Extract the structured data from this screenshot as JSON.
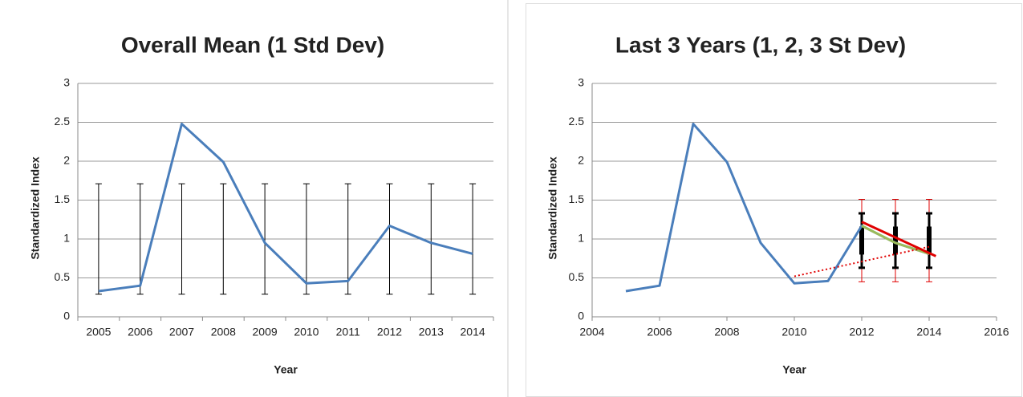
{
  "chart_data": [
    {
      "type": "line",
      "title": "Overall Mean (1 Std Dev)",
      "x_label": "Year",
      "y_label": "Standardized Index",
      "categories": [
        "2005",
        "2006",
        "2007",
        "2008",
        "2009",
        "2010",
        "2011",
        "2012",
        "2013",
        "2014"
      ],
      "series": [
        {
          "color": "#4a7ebb",
          "values": [
            0.33,
            0.4,
            2.48,
            1.99,
            0.95,
            0.43,
            0.46,
            1.17,
            0.95,
            0.81
          ]
        }
      ],
      "error_bars": [
        {
          "color": "#000000",
          "values": [
            1.0,
            1.0,
            1.0,
            1.0,
            1.0,
            1.0,
            1.0,
            1.0,
            1.0,
            1.0
          ],
          "errors": [
            0.71,
            0.71,
            0.71,
            0.71,
            0.71,
            0.71,
            0.71,
            0.71,
            0.71,
            0.71
          ]
        }
      ],
      "ylim": [
        0,
        3
      ],
      "yticks": [
        0,
        0.5,
        1,
        1.5,
        2,
        2.5,
        3
      ],
      "grid": true
    },
    {
      "type": "line",
      "title": "Last 3 Years (1, 2, 3 St Dev)",
      "x_label": "Year",
      "y_label": "Standardized Index",
      "series": [
        {
          "color": "#4a7ebb",
          "x": [
            2005,
            2006,
            2007,
            2008,
            2009,
            2010,
            2011,
            2012,
            2013,
            2014
          ],
          "values": [
            0.33,
            0.4,
            2.48,
            1.99,
            0.95,
            0.43,
            0.46,
            1.17,
            0.95,
            0.81
          ]
        },
        {
          "color": "#9bbb59",
          "x": [
            2012,
            2013,
            2014
          ],
          "values": [
            1.17,
            0.95,
            0.81
          ]
        },
        {
          "color": "#e00000",
          "x": [
            2012,
            2014.2
          ],
          "values": [
            1.22,
            0.78
          ]
        },
        {
          "color": "#e00000",
          "dashed": true,
          "x": [
            2010,
            2014
          ],
          "values": [
            0.52,
            0.9
          ]
        }
      ],
      "error_bars": [
        {
          "color": "#e00000",
          "x": [
            2012,
            2013,
            2014
          ],
          "values": [
            0.98,
            0.98,
            0.98
          ],
          "errors": [
            0.53,
            0.53,
            0.53
          ]
        },
        {
          "color": "#000000",
          "x": [
            2012,
            2013,
            2014
          ],
          "values": [
            0.98,
            0.98,
            0.98
          ],
          "errors": [
            0.35,
            0.35,
            0.35
          ]
        },
        {
          "color": "#000000",
          "thick": true,
          "x": [
            2012,
            2013,
            2014
          ],
          "values": [
            0.98,
            0.98,
            0.98
          ],
          "errors": [
            0.18,
            0.18,
            0.18
          ]
        }
      ],
      "xlim": [
        2004,
        2016
      ],
      "xticks": [
        2004,
        2006,
        2008,
        2010,
        2012,
        2014,
        2016
      ],
      "ylim": [
        0,
        3
      ],
      "yticks": [
        0,
        0.5,
        1,
        1.5,
        2,
        2.5,
        3
      ],
      "grid": true
    }
  ]
}
